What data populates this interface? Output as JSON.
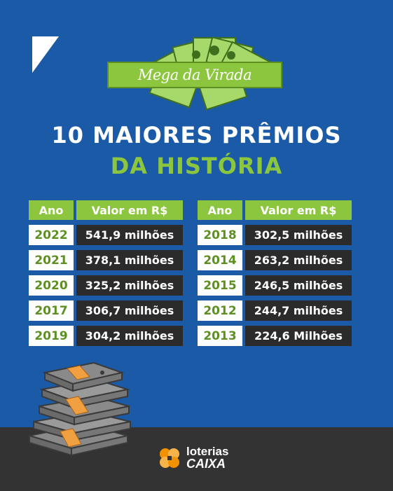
{
  "banner": {
    "text": "Mega da Virada"
  },
  "title": {
    "line1": "10 MAIORES PRÊMIOS",
    "line2": "DA HISTÓRIA"
  },
  "tables": [
    {
      "header": {
        "year": "Ano",
        "value": "Valor em R$"
      },
      "rows": [
        {
          "year": "2022",
          "value": "541,9 milhões"
        },
        {
          "year": "2021",
          "value": "378,1 milhões"
        },
        {
          "year": "2020",
          "value": "325,2 milhões"
        },
        {
          "year": "2017",
          "value": "306,7 milhões"
        },
        {
          "year": "2019",
          "value": "304,2 milhões"
        }
      ]
    },
    {
      "header": {
        "year": "Ano",
        "value": "Valor em R$"
      },
      "rows": [
        {
          "year": "2018",
          "value": "302,5 milhões"
        },
        {
          "year": "2014",
          "value": "263,2 milhões"
        },
        {
          "year": "2015",
          "value": "246,5 milhões"
        },
        {
          "year": "2012",
          "value": "244,7 milhões"
        },
        {
          "year": "2013",
          "value": "224,6 Milhões"
        }
      ]
    }
  ],
  "footer": {
    "logo_line1": "loterias",
    "logo_line2": "CAIXA"
  },
  "colors": {
    "background": "#1b5aa6",
    "accent_green": "#8cc63f",
    "dark": "#2b2b2b",
    "footer": "#333333",
    "logo_orange": "#f39200"
  },
  "icons": [
    "corner-triangle-icon",
    "money-bills-icon",
    "money-stack-icon",
    "loterias-clover-icon"
  ]
}
